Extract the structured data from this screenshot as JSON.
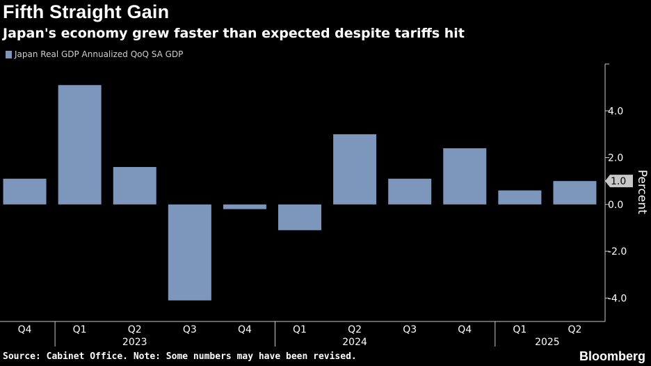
{
  "title": "Fifth Straight Gain",
  "subtitle": "Japan's economy grew faster than expected despite tariffs hit",
  "source": "Source: Cabinet Office. Note: Some numbers may have been revised.",
  "brand": "Bloomberg",
  "colors": {
    "bar": "#7d96bc",
    "background": "#000000",
    "text": "#ffffff",
    "axis": "#cccccc"
  },
  "chart_data": {
    "type": "bar",
    "categories": [
      "Q4",
      "Q1",
      "Q2",
      "Q3",
      "Q4",
      "Q1",
      "Q2",
      "Q3",
      "Q4",
      "Q1",
      "Q2"
    ],
    "year_labels": [
      {
        "label": "2023",
        "category_index": 2
      },
      {
        "label": "2024",
        "category_index": 6
      },
      {
        "label": "2025",
        "category_index": 9.5
      }
    ],
    "year_separators": [
      0.5,
      4.5,
      8.5
    ],
    "series": [
      {
        "name": "Japan Real GDP Annualized QoQ SA GDP",
        "values": [
          1.1,
          5.1,
          1.6,
          -4.1,
          -0.2,
          -1.1,
          3.0,
          1.1,
          2.4,
          0.6,
          1.0
        ]
      }
    ],
    "ylabel": "Percent",
    "ylim": [
      -5,
      6
    ],
    "yticks": [
      -4.0,
      -2.0,
      0.0,
      2.0,
      4.0
    ],
    "ytick_labels": [
      "-4.0",
      "-2.0",
      "0.0",
      "2.0",
      "4.0"
    ],
    "last_value_label": "1.0",
    "legend_position": "top-left",
    "grid": false
  }
}
